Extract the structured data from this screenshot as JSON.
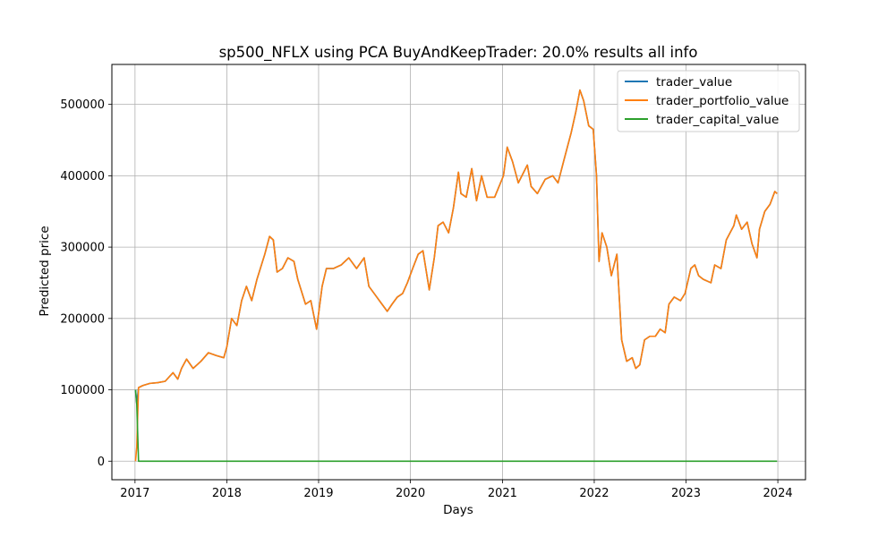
{
  "chart_data": {
    "type": "line",
    "title": "sp500_NFLX using PCA BuyAndKeepTrader: 20.0% results all info",
    "xlabel": "Days",
    "ylabel": "Predicted price",
    "xlim": [
      "2016-10-01",
      "2024-04-20"
    ],
    "ylim": [
      -26000,
      556000
    ],
    "x_ticks": [
      {
        "date": "2017-01-01",
        "label": "2017"
      },
      {
        "date": "2018-01-01",
        "label": "2018"
      },
      {
        "date": "2019-01-01",
        "label": "2019"
      },
      {
        "date": "2020-01-01",
        "label": "2020"
      },
      {
        "date": "2021-01-01",
        "label": "2021"
      },
      {
        "date": "2022-01-01",
        "label": "2022"
      },
      {
        "date": "2023-01-01",
        "label": "2023"
      },
      {
        "date": "2024-01-01",
        "label": "2024"
      }
    ],
    "y_ticks": [
      {
        "value": 0,
        "label": "0"
      },
      {
        "value": 100000,
        "label": "100000"
      },
      {
        "value": 200000,
        "label": "200000"
      },
      {
        "value": 300000,
        "label": "300000"
      },
      {
        "value": 400000,
        "label": "400000"
      },
      {
        "value": 500000,
        "label": "500000"
      }
    ],
    "grid": true,
    "legend_position": "top-right",
    "series": [
      {
        "name": "trader_value",
        "color": "#1f77b4",
        "points": [
          [
            "2017-01-03",
            100000
          ],
          [
            "2017-01-08",
            80000
          ],
          [
            "2017-01-15",
            103000
          ],
          [
            "2017-02-01",
            106000
          ],
          [
            "2017-03-01",
            109000
          ],
          [
            "2017-04-01",
            110000
          ],
          [
            "2017-05-01",
            112000
          ],
          [
            "2017-06-01",
            124000
          ],
          [
            "2017-06-20",
            115000
          ],
          [
            "2017-07-05",
            130000
          ],
          [
            "2017-07-25",
            143000
          ],
          [
            "2017-08-20",
            130000
          ],
          [
            "2017-09-20",
            140000
          ],
          [
            "2017-10-20",
            152000
          ],
          [
            "2017-11-20",
            148000
          ],
          [
            "2017-12-20",
            145000
          ],
          [
            "2018-01-01",
            160000
          ],
          [
            "2018-01-20",
            200000
          ],
          [
            "2018-02-10",
            190000
          ],
          [
            "2018-03-01",
            225000
          ],
          [
            "2018-03-20",
            245000
          ],
          [
            "2018-04-10",
            225000
          ],
          [
            "2018-05-01",
            255000
          ],
          [
            "2018-06-01",
            290000
          ],
          [
            "2018-06-20",
            315000
          ],
          [
            "2018-07-05",
            310000
          ],
          [
            "2018-07-20",
            265000
          ],
          [
            "2018-08-10",
            270000
          ],
          [
            "2018-09-01",
            285000
          ],
          [
            "2018-09-25",
            280000
          ],
          [
            "2018-10-10",
            255000
          ],
          [
            "2018-11-10",
            220000
          ],
          [
            "2018-12-01",
            225000
          ],
          [
            "2018-12-24",
            185000
          ],
          [
            "2019-01-15",
            245000
          ],
          [
            "2019-02-01",
            270000
          ],
          [
            "2019-03-01",
            270000
          ],
          [
            "2019-04-01",
            275000
          ],
          [
            "2019-05-01",
            285000
          ],
          [
            "2019-06-01",
            270000
          ],
          [
            "2019-07-01",
            285000
          ],
          [
            "2019-07-20",
            245000
          ],
          [
            "2019-08-10",
            235000
          ],
          [
            "2019-09-10",
            220000
          ],
          [
            "2019-10-01",
            210000
          ],
          [
            "2019-10-20",
            220000
          ],
          [
            "2019-11-10",
            230000
          ],
          [
            "2019-12-01",
            235000
          ],
          [
            "2019-12-20",
            250000
          ],
          [
            "2020-01-10",
            270000
          ],
          [
            "2020-02-01",
            290000
          ],
          [
            "2020-02-20",
            295000
          ],
          [
            "2020-03-16",
            240000
          ],
          [
            "2020-04-05",
            285000
          ],
          [
            "2020-04-20",
            330000
          ],
          [
            "2020-05-10",
            335000
          ],
          [
            "2020-06-01",
            320000
          ],
          [
            "2020-06-20",
            355000
          ],
          [
            "2020-07-10",
            405000
          ],
          [
            "2020-07-20",
            375000
          ],
          [
            "2020-08-10",
            370000
          ],
          [
            "2020-09-01",
            410000
          ],
          [
            "2020-09-20",
            365000
          ],
          [
            "2020-10-10",
            400000
          ],
          [
            "2020-11-01",
            370000
          ],
          [
            "2020-12-01",
            370000
          ],
          [
            "2021-01-05",
            400000
          ],
          [
            "2021-01-20",
            440000
          ],
          [
            "2021-02-10",
            420000
          ],
          [
            "2021-03-05",
            390000
          ],
          [
            "2021-04-10",
            415000
          ],
          [
            "2021-04-25",
            385000
          ],
          [
            "2021-05-20",
            375000
          ],
          [
            "2021-06-20",
            395000
          ],
          [
            "2021-07-20",
            400000
          ],
          [
            "2021-08-10",
            390000
          ],
          [
            "2021-09-01",
            420000
          ],
          [
            "2021-10-01",
            460000
          ],
          [
            "2021-10-20",
            490000
          ],
          [
            "2021-11-05",
            520000
          ],
          [
            "2021-11-20",
            505000
          ],
          [
            "2021-12-10",
            470000
          ],
          [
            "2021-12-28",
            465000
          ],
          [
            "2022-01-10",
            400000
          ],
          [
            "2022-01-20",
            280000
          ],
          [
            "2022-02-01",
            320000
          ],
          [
            "2022-02-20",
            300000
          ],
          [
            "2022-03-10",
            260000
          ],
          [
            "2022-04-01",
            290000
          ],
          [
            "2022-04-20",
            170000
          ],
          [
            "2022-05-10",
            140000
          ],
          [
            "2022-06-01",
            145000
          ],
          [
            "2022-06-15",
            130000
          ],
          [
            "2022-07-01",
            135000
          ],
          [
            "2022-07-20",
            170000
          ],
          [
            "2022-08-10",
            175000
          ],
          [
            "2022-09-01",
            175000
          ],
          [
            "2022-09-20",
            185000
          ],
          [
            "2022-10-10",
            180000
          ],
          [
            "2022-10-25",
            220000
          ],
          [
            "2022-11-15",
            230000
          ],
          [
            "2022-12-10",
            225000
          ],
          [
            "2022-12-28",
            235000
          ],
          [
            "2023-01-20",
            270000
          ],
          [
            "2023-02-05",
            275000
          ],
          [
            "2023-02-20",
            260000
          ],
          [
            "2023-03-10",
            255000
          ],
          [
            "2023-04-10",
            250000
          ],
          [
            "2023-04-25",
            275000
          ],
          [
            "2023-05-20",
            270000
          ],
          [
            "2023-06-10",
            310000
          ],
          [
            "2023-06-25",
            320000
          ],
          [
            "2023-07-10",
            330000
          ],
          [
            "2023-07-20",
            345000
          ],
          [
            "2023-08-10",
            325000
          ],
          [
            "2023-09-01",
            335000
          ],
          [
            "2023-09-20",
            305000
          ],
          [
            "2023-10-10",
            285000
          ],
          [
            "2023-10-20",
            325000
          ],
          [
            "2023-11-10",
            350000
          ],
          [
            "2023-12-01",
            360000
          ],
          [
            "2023-12-20",
            378000
          ],
          [
            "2023-12-29",
            375000
          ]
        ]
      },
      {
        "name": "trader_portfolio_value",
        "color": "#ff7f0e",
        "points": [
          [
            "2017-01-03",
            0
          ],
          [
            "2017-01-08",
            20000
          ],
          [
            "2017-01-15",
            103000
          ],
          [
            "2017-02-01",
            106000
          ],
          [
            "2017-03-01",
            109000
          ],
          [
            "2017-04-01",
            110000
          ],
          [
            "2017-05-01",
            112000
          ],
          [
            "2017-06-01",
            124000
          ],
          [
            "2017-06-20",
            115000
          ],
          [
            "2017-07-05",
            130000
          ],
          [
            "2017-07-25",
            143000
          ],
          [
            "2017-08-20",
            130000
          ],
          [
            "2017-09-20",
            140000
          ],
          [
            "2017-10-20",
            152000
          ],
          [
            "2017-11-20",
            148000
          ],
          [
            "2017-12-20",
            145000
          ],
          [
            "2018-01-01",
            160000
          ],
          [
            "2018-01-20",
            200000
          ],
          [
            "2018-02-10",
            190000
          ],
          [
            "2018-03-01",
            225000
          ],
          [
            "2018-03-20",
            245000
          ],
          [
            "2018-04-10",
            225000
          ],
          [
            "2018-05-01",
            255000
          ],
          [
            "2018-06-01",
            290000
          ],
          [
            "2018-06-20",
            315000
          ],
          [
            "2018-07-05",
            310000
          ],
          [
            "2018-07-20",
            265000
          ],
          [
            "2018-08-10",
            270000
          ],
          [
            "2018-09-01",
            285000
          ],
          [
            "2018-09-25",
            280000
          ],
          [
            "2018-10-10",
            255000
          ],
          [
            "2018-11-10",
            220000
          ],
          [
            "2018-12-01",
            225000
          ],
          [
            "2018-12-24",
            185000
          ],
          [
            "2019-01-15",
            245000
          ],
          [
            "2019-02-01",
            270000
          ],
          [
            "2019-03-01",
            270000
          ],
          [
            "2019-04-01",
            275000
          ],
          [
            "2019-05-01",
            285000
          ],
          [
            "2019-06-01",
            270000
          ],
          [
            "2019-07-01",
            285000
          ],
          [
            "2019-07-20",
            245000
          ],
          [
            "2019-08-10",
            235000
          ],
          [
            "2019-09-10",
            220000
          ],
          [
            "2019-10-01",
            210000
          ],
          [
            "2019-10-20",
            220000
          ],
          [
            "2019-11-10",
            230000
          ],
          [
            "2019-12-01",
            235000
          ],
          [
            "2019-12-20",
            250000
          ],
          [
            "2020-01-10",
            270000
          ],
          [
            "2020-02-01",
            290000
          ],
          [
            "2020-02-20",
            295000
          ],
          [
            "2020-03-16",
            240000
          ],
          [
            "2020-04-05",
            285000
          ],
          [
            "2020-04-20",
            330000
          ],
          [
            "2020-05-10",
            335000
          ],
          [
            "2020-06-01",
            320000
          ],
          [
            "2020-06-20",
            355000
          ],
          [
            "2020-07-10",
            405000
          ],
          [
            "2020-07-20",
            375000
          ],
          [
            "2020-08-10",
            370000
          ],
          [
            "2020-09-01",
            410000
          ],
          [
            "2020-09-20",
            365000
          ],
          [
            "2020-10-10",
            400000
          ],
          [
            "2020-11-01",
            370000
          ],
          [
            "2020-12-01",
            370000
          ],
          [
            "2021-01-05",
            400000
          ],
          [
            "2021-01-20",
            440000
          ],
          [
            "2021-02-10",
            420000
          ],
          [
            "2021-03-05",
            390000
          ],
          [
            "2021-04-10",
            415000
          ],
          [
            "2021-04-25",
            385000
          ],
          [
            "2021-05-20",
            375000
          ],
          [
            "2021-06-20",
            395000
          ],
          [
            "2021-07-20",
            400000
          ],
          [
            "2021-08-10",
            390000
          ],
          [
            "2021-09-01",
            420000
          ],
          [
            "2021-10-01",
            460000
          ],
          [
            "2021-10-20",
            490000
          ],
          [
            "2021-11-05",
            520000
          ],
          [
            "2021-11-20",
            505000
          ],
          [
            "2021-12-10",
            470000
          ],
          [
            "2021-12-28",
            465000
          ],
          [
            "2022-01-10",
            400000
          ],
          [
            "2022-01-20",
            280000
          ],
          [
            "2022-02-01",
            320000
          ],
          [
            "2022-02-20",
            300000
          ],
          [
            "2022-03-10",
            260000
          ],
          [
            "2022-04-01",
            290000
          ],
          [
            "2022-04-20",
            170000
          ],
          [
            "2022-05-10",
            140000
          ],
          [
            "2022-06-01",
            145000
          ],
          [
            "2022-06-15",
            130000
          ],
          [
            "2022-07-01",
            135000
          ],
          [
            "2022-07-20",
            170000
          ],
          [
            "2022-08-10",
            175000
          ],
          [
            "2022-09-01",
            175000
          ],
          [
            "2022-09-20",
            185000
          ],
          [
            "2022-10-10",
            180000
          ],
          [
            "2022-10-25",
            220000
          ],
          [
            "2022-11-15",
            230000
          ],
          [
            "2022-12-10",
            225000
          ],
          [
            "2022-12-28",
            235000
          ],
          [
            "2023-01-20",
            270000
          ],
          [
            "2023-02-05",
            275000
          ],
          [
            "2023-02-20",
            260000
          ],
          [
            "2023-03-10",
            255000
          ],
          [
            "2023-04-10",
            250000
          ],
          [
            "2023-04-25",
            275000
          ],
          [
            "2023-05-20",
            270000
          ],
          [
            "2023-06-10",
            310000
          ],
          [
            "2023-06-25",
            320000
          ],
          [
            "2023-07-10",
            330000
          ],
          [
            "2023-07-20",
            345000
          ],
          [
            "2023-08-10",
            325000
          ],
          [
            "2023-09-01",
            335000
          ],
          [
            "2023-09-20",
            305000
          ],
          [
            "2023-10-10",
            285000
          ],
          [
            "2023-10-20",
            325000
          ],
          [
            "2023-11-10",
            350000
          ],
          [
            "2023-12-01",
            360000
          ],
          [
            "2023-12-20",
            378000
          ],
          [
            "2023-12-29",
            375000
          ]
        ]
      },
      {
        "name": "trader_capital_value",
        "color": "#2ca02c",
        "points": [
          [
            "2017-01-03",
            100000
          ],
          [
            "2017-01-08",
            80000
          ],
          [
            "2017-01-15",
            0
          ],
          [
            "2023-12-29",
            0
          ]
        ]
      }
    ]
  }
}
